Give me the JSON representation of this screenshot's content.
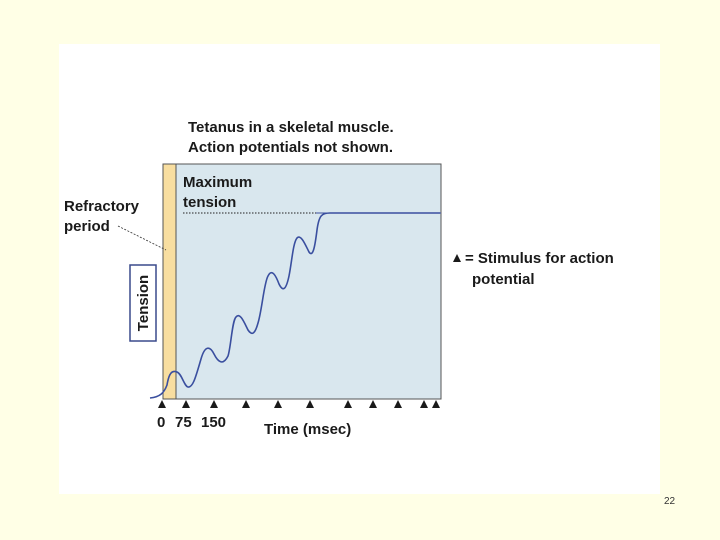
{
  "figure": {
    "title_line1": "Tetanus in a skeletal muscle.",
    "title_line2": "Action potentials not shown.",
    "max_label_line1": "Maximum",
    "max_label_line2": "tension",
    "refractory_line1": "Refractory",
    "refractory_line2": "period",
    "y_axis_label": "Tension",
    "legend_line1": "= Stimulus for action",
    "legend_line2": "potential",
    "x_axis_title": "Time (msec)",
    "tick_labels": [
      "0",
      "75",
      "150"
    ],
    "stimulus_count": 11
  },
  "colors": {
    "page_bg": "#ffffe6",
    "plot_bg": "#d9e7ee",
    "refractory_fill": "#f8dea0",
    "curve": "#3a4f9f",
    "axis_box": "#3a4a8c"
  },
  "page_number": "22"
}
